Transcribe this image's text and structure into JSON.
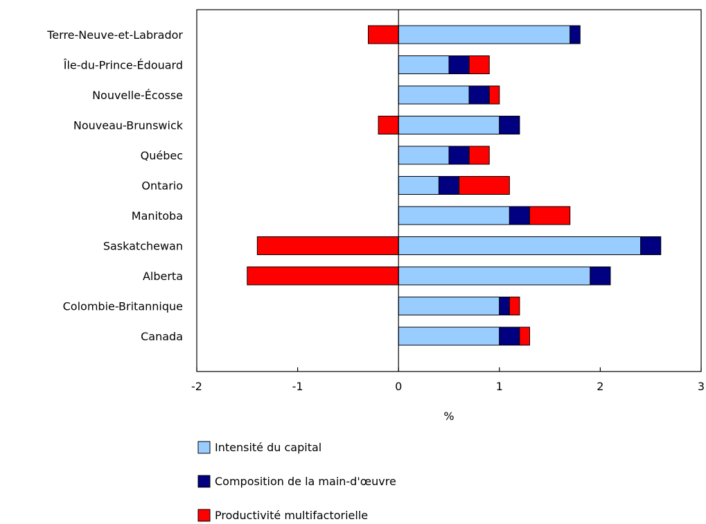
{
  "chart_data": {
    "type": "bar",
    "orientation": "horizontal",
    "stacked": true,
    "categories": [
      "Terre-Neuve-et-Labrador",
      "Île-du-Prince-Édouard",
      "Nouvelle-Écosse",
      "Nouveau-Brunswick",
      "Québec",
      "Ontario",
      "Manitoba",
      "Saskatchewan",
      "Alberta",
      "Colombie-Britannique",
      "Canada"
    ],
    "series": [
      {
        "name": "Intensité du capital",
        "color": "#99ccff",
        "values": [
          1.7,
          0.5,
          0.7,
          1.0,
          0.5,
          0.4,
          1.1,
          2.4,
          1.9,
          1.0,
          1.0
        ]
      },
      {
        "name": "Composition de la main-d'œuvre",
        "color": "#000080",
        "values": [
          0.1,
          0.2,
          0.2,
          0.2,
          0.2,
          0.2,
          0.2,
          0.2,
          0.2,
          0.1,
          0.2
        ]
      },
      {
        "name": "Productivité multifactorielle",
        "color": "#ff0000",
        "values": [
          -0.3,
          0.2,
          0.1,
          -0.2,
          0.2,
          0.5,
          0.4,
          -1.4,
          -1.5,
          0.1,
          0.1
        ]
      }
    ],
    "title": "",
    "xlabel": "%",
    "ylabel": "",
    "xlim": [
      -2,
      3
    ],
    "xticks": [
      -2,
      -1,
      0,
      1,
      2,
      3
    ],
    "xtick_labels": [
      "-2",
      "-1",
      "0",
      "1",
      "2",
      "3"
    ],
    "grid": false,
    "legend_position": "bottom"
  }
}
